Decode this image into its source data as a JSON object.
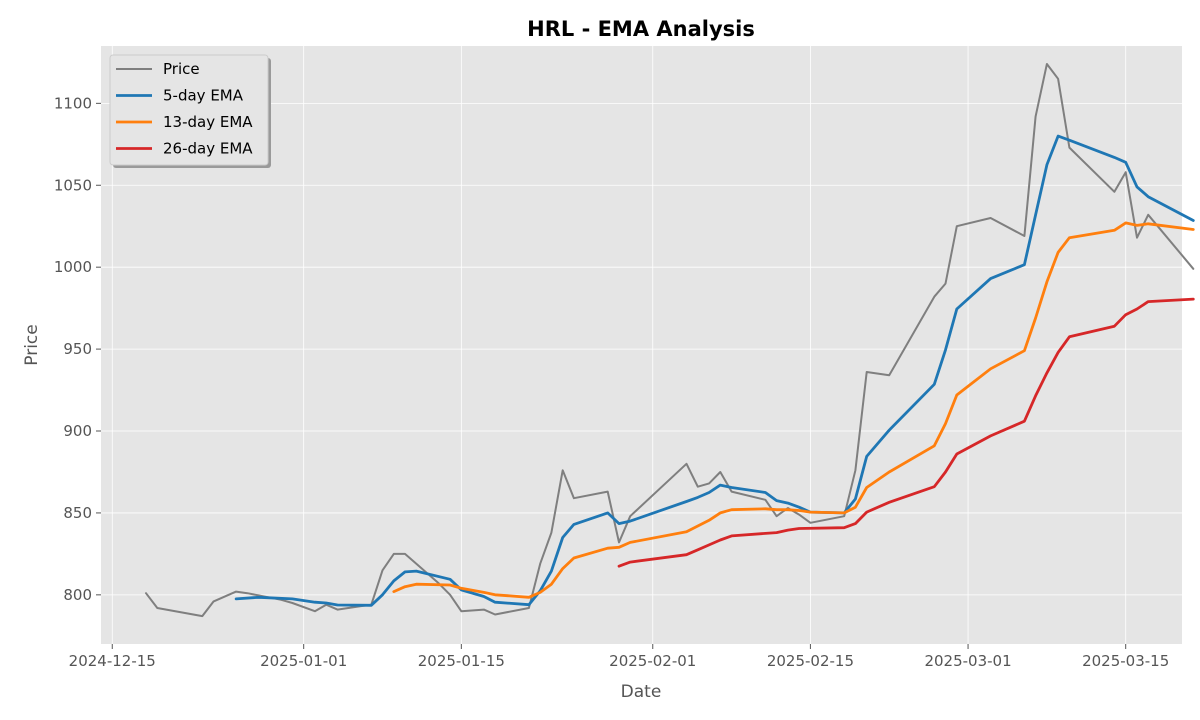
{
  "chart_data": {
    "type": "line",
    "title": "HRL - EMA Analysis",
    "xlabel": "Date",
    "ylabel": "Price",
    "x_ticks": [
      "2024-12-15",
      "2025-01-01",
      "2025-01-15",
      "2025-02-01",
      "2025-02-15",
      "2025-03-01",
      "2025-03-15"
    ],
    "y_ticks": [
      800,
      850,
      900,
      950,
      1000,
      1050,
      1100
    ],
    "xlim": [
      "2024-12-14",
      "2025-03-20"
    ],
    "ylim": [
      770,
      1135
    ],
    "grid": true,
    "legend_position": "top-left",
    "colors": {
      "plot_bg": "#e5e5e5",
      "grid": "#ffffff",
      "price": "#7f7f7f",
      "ema5": "#1f77b4",
      "ema13": "#ff7f0e",
      "ema26": "#d62728"
    },
    "series": [
      {
        "name": "Price",
        "color": "#7f7f7f",
        "points": [
          [
            "2024-12-18",
            801
          ],
          [
            "2024-12-19",
            792
          ],
          [
            "2024-12-23",
            787
          ],
          [
            "2024-12-24",
            796
          ],
          [
            "2024-12-26",
            802
          ],
          [
            "2024-12-27",
            801
          ],
          [
            "2024-12-30",
            797
          ],
          [
            "2024-12-31",
            795
          ],
          [
            "2025-01-02",
            790
          ],
          [
            "2025-01-03",
            794
          ],
          [
            "2025-01-04",
            791
          ],
          [
            "2025-01-06",
            793
          ],
          [
            "2025-01-07",
            794
          ],
          [
            "2025-01-08",
            815
          ],
          [
            "2025-01-09",
            825
          ],
          [
            "2025-01-10",
            825
          ],
          [
            "2025-01-13",
            807
          ],
          [
            "2025-01-14",
            800
          ],
          [
            "2025-01-15",
            790
          ],
          [
            "2025-01-17",
            791
          ],
          [
            "2025-01-18",
            788
          ],
          [
            "2025-01-21",
            792
          ],
          [
            "2025-01-22",
            819
          ],
          [
            "2025-01-23",
            838
          ],
          [
            "2025-01-24",
            876
          ],
          [
            "2025-01-25",
            859
          ],
          [
            "2025-01-28",
            863
          ],
          [
            "2025-01-29",
            832
          ],
          [
            "2025-01-30",
            848
          ],
          [
            "2025-02-04",
            880
          ],
          [
            "2025-02-05",
            866
          ],
          [
            "2025-02-06",
            868
          ],
          [
            "2025-02-07",
            875
          ],
          [
            "2025-02-08",
            863
          ],
          [
            "2025-02-11",
            858
          ],
          [
            "2025-02-12",
            848
          ],
          [
            "2025-02-13",
            853
          ],
          [
            "2025-02-14",
            849
          ],
          [
            "2025-02-15",
            844
          ],
          [
            "2025-02-18",
            848
          ],
          [
            "2025-02-19",
            876
          ],
          [
            "2025-02-20",
            936
          ],
          [
            "2025-02-22",
            934
          ],
          [
            "2025-02-26",
            982
          ],
          [
            "2025-02-27",
            990
          ],
          [
            "2025-02-28",
            1025
          ],
          [
            "2025-03-03",
            1030
          ],
          [
            "2025-03-06",
            1019
          ],
          [
            "2025-03-07",
            1092
          ],
          [
            "2025-03-08",
            1124
          ],
          [
            "2025-03-09",
            1115
          ],
          [
            "2025-03-10",
            1073
          ],
          [
            "2025-03-14",
            1046
          ],
          [
            "2025-03-15",
            1058
          ],
          [
            "2025-03-16",
            1018
          ],
          [
            "2025-03-17",
            1032
          ],
          [
            "2025-03-21",
            999
          ]
        ]
      },
      {
        "name": "5-day EMA",
        "color": "#1f77b4",
        "points": [
          [
            "2024-12-26",
            797.5
          ],
          [
            "2024-12-28",
            798.5
          ],
          [
            "2024-12-31",
            797.5
          ],
          [
            "2025-01-02",
            795.5
          ],
          [
            "2025-01-03",
            795
          ],
          [
            "2025-01-04",
            793.8
          ],
          [
            "2025-01-07",
            793.6
          ],
          [
            "2025-01-08",
            800
          ],
          [
            "2025-01-09",
            808.5
          ],
          [
            "2025-01-10",
            814
          ],
          [
            "2025-01-11",
            814.5
          ],
          [
            "2025-01-14",
            809.5
          ],
          [
            "2025-01-15",
            803
          ],
          [
            "2025-01-17",
            799
          ],
          [
            "2025-01-18",
            795.5
          ],
          [
            "2025-01-21",
            794
          ],
          [
            "2025-01-22",
            802.5
          ],
          [
            "2025-01-23",
            814.5
          ],
          [
            "2025-01-24",
            835
          ],
          [
            "2025-01-25",
            843
          ],
          [
            "2025-01-28",
            850
          ],
          [
            "2025-01-29",
            843.5
          ],
          [
            "2025-01-30",
            845
          ],
          [
            "2025-02-04",
            857
          ],
          [
            "2025-02-05",
            859.5
          ],
          [
            "2025-02-06",
            862.5
          ],
          [
            "2025-02-07",
            867
          ],
          [
            "2025-02-08",
            865.5
          ],
          [
            "2025-02-11",
            862.5
          ],
          [
            "2025-02-12",
            857.5
          ],
          [
            "2025-02-13",
            856
          ],
          [
            "2025-02-14",
            853.5
          ],
          [
            "2025-02-15",
            850.5
          ],
          [
            "2025-02-18",
            850
          ],
          [
            "2025-02-19",
            858.5
          ],
          [
            "2025-02-20",
            884.5
          ],
          [
            "2025-02-22",
            900.5
          ],
          [
            "2025-02-26",
            928.5
          ],
          [
            "2025-02-27",
            949.5
          ],
          [
            "2025-02-28",
            974.5
          ],
          [
            "2025-03-03",
            993
          ],
          [
            "2025-03-06",
            1001.5
          ],
          [
            "2025-03-07",
            1032
          ],
          [
            "2025-03-08",
            1062.5
          ],
          [
            "2025-03-09",
            1080
          ],
          [
            "2025-03-10",
            1077.5
          ],
          [
            "2025-03-14",
            1067
          ],
          [
            "2025-03-15",
            1064
          ],
          [
            "2025-03-16",
            1049
          ],
          [
            "2025-03-17",
            1043
          ],
          [
            "2025-03-21",
            1028.5
          ]
        ]
      },
      {
        "name": "13-day EMA",
        "color": "#ff7f0e",
        "points": [
          [
            "2025-01-09",
            802
          ],
          [
            "2025-01-10",
            805
          ],
          [
            "2025-01-11",
            806.5
          ],
          [
            "2025-01-14",
            806
          ],
          [
            "2025-01-15",
            804
          ],
          [
            "2025-01-17",
            801.5
          ],
          [
            "2025-01-18",
            800
          ],
          [
            "2025-01-21",
            798.5
          ],
          [
            "2025-01-22",
            801.5
          ],
          [
            "2025-01-23",
            806.5
          ],
          [
            "2025-01-24",
            816
          ],
          [
            "2025-01-25",
            822.5
          ],
          [
            "2025-01-28",
            828.5
          ],
          [
            "2025-01-29",
            829
          ],
          [
            "2025-01-30",
            832
          ],
          [
            "2025-02-04",
            838.5
          ],
          [
            "2025-02-05",
            842
          ],
          [
            "2025-02-06",
            845.5
          ],
          [
            "2025-02-07",
            850
          ],
          [
            "2025-02-08",
            852
          ],
          [
            "2025-02-11",
            852.5
          ],
          [
            "2025-02-12",
            852
          ],
          [
            "2025-02-13",
            852
          ],
          [
            "2025-02-14",
            851.5
          ],
          [
            "2025-02-15",
            850.5
          ],
          [
            "2025-02-18",
            850
          ],
          [
            "2025-02-19",
            853.5
          ],
          [
            "2025-02-20",
            865.5
          ],
          [
            "2025-02-22",
            875
          ],
          [
            "2025-02-26",
            891
          ],
          [
            "2025-02-27",
            904.5
          ],
          [
            "2025-02-28",
            922
          ],
          [
            "2025-03-03",
            938
          ],
          [
            "2025-03-06",
            949
          ],
          [
            "2025-03-07",
            969
          ],
          [
            "2025-03-08",
            991
          ],
          [
            "2025-03-09",
            1009
          ],
          [
            "2025-03-10",
            1018
          ],
          [
            "2025-03-14",
            1022.5
          ],
          [
            "2025-03-15",
            1027
          ],
          [
            "2025-03-16",
            1025.5
          ],
          [
            "2025-03-17",
            1026.5
          ],
          [
            "2025-03-21",
            1023
          ]
        ]
      },
      {
        "name": "26-day EMA",
        "color": "#d62728",
        "points": [
          [
            "2025-01-29",
            817.5
          ],
          [
            "2025-01-30",
            820
          ],
          [
            "2025-02-04",
            824.5
          ],
          [
            "2025-02-05",
            827.5
          ],
          [
            "2025-02-06",
            830.5
          ],
          [
            "2025-02-07",
            833.5
          ],
          [
            "2025-02-08",
            836
          ],
          [
            "2025-02-11",
            837.5
          ],
          [
            "2025-02-12",
            838
          ],
          [
            "2025-02-13",
            839.5
          ],
          [
            "2025-02-14",
            840.5
          ],
          [
            "2025-02-18",
            841
          ],
          [
            "2025-02-19",
            843.5
          ],
          [
            "2025-02-20",
            850.5
          ],
          [
            "2025-02-22",
            856.5
          ],
          [
            "2025-02-26",
            866
          ],
          [
            "2025-02-27",
            875
          ],
          [
            "2025-02-28",
            886
          ],
          [
            "2025-03-03",
            897
          ],
          [
            "2025-03-06",
            906
          ],
          [
            "2025-03-07",
            921.5
          ],
          [
            "2025-03-08",
            935.5
          ],
          [
            "2025-03-09",
            948
          ],
          [
            "2025-03-10",
            957.5
          ],
          [
            "2025-03-14",
            964
          ],
          [
            "2025-03-15",
            971
          ],
          [
            "2025-03-16",
            974.5
          ],
          [
            "2025-03-17",
            979
          ],
          [
            "2025-03-21",
            980.5
          ]
        ]
      }
    ]
  }
}
